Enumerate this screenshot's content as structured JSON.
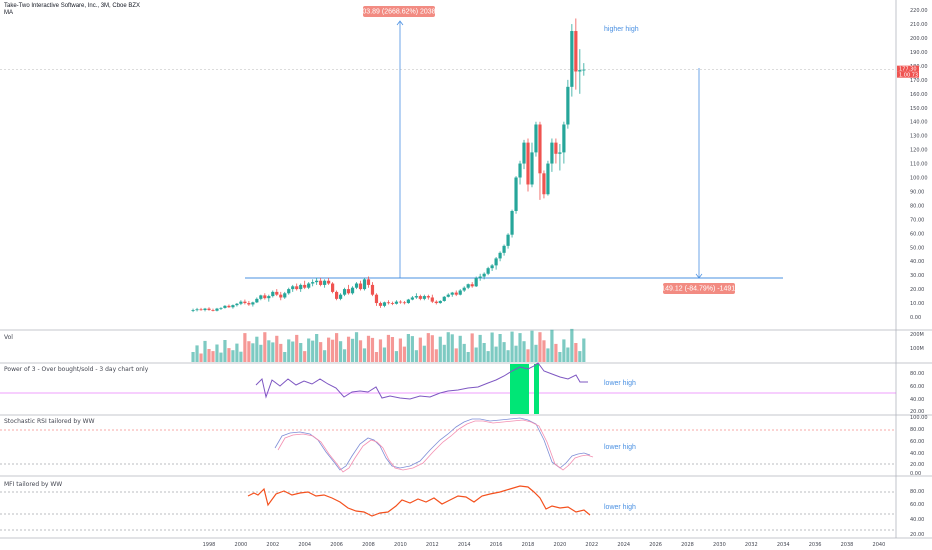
{
  "header": {
    "title": "Take-Two Interactive Software, Inc., 3M, Cboe BZX",
    "ma_label": "MA"
  },
  "colors": {
    "up": "#26a69a",
    "down": "#ef5350",
    "annotation_blue": "#4a90e2",
    "rsi_line": "#7e57c2",
    "mfi_line": "#f4511e",
    "green_fill": "#00e676"
  },
  "panels": {
    "volume": {
      "title": "Vol",
      "ticks": [
        "200M",
        "100M"
      ]
    },
    "power3": {
      "title": "Power of 3 - Over bought/sold - 3 day chart only",
      "ticks": [
        "80.00",
        "60.00",
        "40.00",
        "20.00"
      ],
      "annotation": "lower high"
    },
    "stochrsi": {
      "title": "Stochastic RSI tailored by WW",
      "ticks": [
        "100.00",
        "80.00",
        "60.00",
        "40.00",
        "20.00",
        "0.00"
      ],
      "annotation": "lower high"
    },
    "mfi": {
      "title": "MFI tailored by WW",
      "ticks": [
        "80.00",
        "60.00",
        "40.00",
        "20.00"
      ],
      "annotation": "lower high"
    }
  },
  "main_annotations": {
    "higher_high": "higher high",
    "measure_up": "203.89 (2668.62%) 20389",
    "measure_down": "-149.12 (-84.79%) -14912",
    "price_labels": [
      "177.30",
      "1.00 73"
    ]
  },
  "chart_data": {
    "type": "candlestick",
    "price_ticks": [
      "220.00",
      "210.00",
      "200.00",
      "190.00",
      "180.00",
      "170.00",
      "160.00",
      "150.00",
      "140.00",
      "130.00",
      "120.00",
      "110.00",
      "100.00",
      "90.00",
      "80.00",
      "70.00",
      "60.00",
      "50.00",
      "40.00",
      "30.00",
      "20.00",
      "10.00",
      "0.00"
    ],
    "years": [
      "1998",
      "2000",
      "2002",
      "2004",
      "2006",
      "2008",
      "2010",
      "2012",
      "2014",
      "2016",
      "2018",
      "2020",
      "2022",
      "2024",
      "2026",
      "2028",
      "2030",
      "2032",
      "2034",
      "2036",
      "2038",
      "2040"
    ],
    "support_level": 28,
    "candles": [
      {
        "t": 1997.0,
        "o": 4.5,
        "h": 6.0,
        "l": 3.5,
        "c": 5.0
      },
      {
        "t": 1997.25,
        "o": 5.0,
        "h": 6.5,
        "l": 4.0,
        "c": 5.5
      },
      {
        "t": 1997.5,
        "o": 5.5,
        "h": 6.5,
        "l": 4.5,
        "c": 5.0
      },
      {
        "t": 1997.75,
        "o": 5.0,
        "h": 6.5,
        "l": 4.0,
        "c": 6.0
      },
      {
        "t": 1998.0,
        "o": 6.0,
        "h": 7.0,
        "l": 4.5,
        "c": 5.0
      },
      {
        "t": 1998.25,
        "o": 5.0,
        "h": 6.0,
        "l": 4.0,
        "c": 4.5
      },
      {
        "t": 1998.5,
        "o": 4.5,
        "h": 6.5,
        "l": 4.0,
        "c": 6.0
      },
      {
        "t": 1998.75,
        "o": 6.0,
        "h": 7.0,
        "l": 5.0,
        "c": 6.5
      },
      {
        "t": 1999.0,
        "o": 6.5,
        "h": 8.5,
        "l": 6.0,
        "c": 8.0
      },
      {
        "t": 1999.25,
        "o": 8.0,
        "h": 9.0,
        "l": 6.5,
        "c": 7.0
      },
      {
        "t": 1999.5,
        "o": 7.0,
        "h": 9.0,
        "l": 6.0,
        "c": 8.5
      },
      {
        "t": 1999.75,
        "o": 8.5,
        "h": 10.0,
        "l": 7.5,
        "c": 9.5
      },
      {
        "t": 2000.0,
        "o": 9.5,
        "h": 12.0,
        "l": 8.5,
        "c": 11.0
      },
      {
        "t": 2000.25,
        "o": 11.0,
        "h": 12.5,
        "l": 9.0,
        "c": 10.0
      },
      {
        "t": 2000.5,
        "o": 10.0,
        "h": 11.5,
        "l": 8.0,
        "c": 9.0
      },
      {
        "t": 2000.75,
        "o": 9.0,
        "h": 11.0,
        "l": 7.5,
        "c": 10.5
      },
      {
        "t": 2001.0,
        "o": 10.5,
        "h": 14.0,
        "l": 10.0,
        "c": 13.0
      },
      {
        "t": 2001.25,
        "o": 13.0,
        "h": 16.0,
        "l": 12.0,
        "c": 15.5
      },
      {
        "t": 2001.5,
        "o": 15.5,
        "h": 17.0,
        "l": 12.5,
        "c": 13.5
      },
      {
        "t": 2001.75,
        "o": 13.5,
        "h": 16.0,
        "l": 11.0,
        "c": 15.0
      },
      {
        "t": 2002.0,
        "o": 15.0,
        "h": 19.0,
        "l": 14.0,
        "c": 18.0
      },
      {
        "t": 2002.25,
        "o": 18.0,
        "h": 20.0,
        "l": 15.0,
        "c": 16.0
      },
      {
        "t": 2002.5,
        "o": 16.0,
        "h": 18.0,
        "l": 12.0,
        "c": 14.0
      },
      {
        "t": 2002.75,
        "o": 14.0,
        "h": 18.0,
        "l": 13.0,
        "c": 17.0
      },
      {
        "t": 2003.0,
        "o": 17.0,
        "h": 21.0,
        "l": 16.0,
        "c": 20.0
      },
      {
        "t": 2003.25,
        "o": 20.0,
        "h": 23.0,
        "l": 18.0,
        "c": 22.0
      },
      {
        "t": 2003.5,
        "o": 22.0,
        "h": 24.0,
        "l": 19.0,
        "c": 20.0
      },
      {
        "t": 2003.75,
        "o": 20.0,
        "h": 24.0,
        "l": 18.0,
        "c": 23.0
      },
      {
        "t": 2004.0,
        "o": 23.0,
        "h": 26.0,
        "l": 20.0,
        "c": 21.0
      },
      {
        "t": 2004.25,
        "o": 21.0,
        "h": 25.0,
        "l": 20.0,
        "c": 24.0
      },
      {
        "t": 2004.5,
        "o": 24.0,
        "h": 27.0,
        "l": 22.0,
        "c": 25.0
      },
      {
        "t": 2004.75,
        "o": 25.0,
        "h": 28.0,
        "l": 23.0,
        "c": 26.0
      },
      {
        "t": 2005.0,
        "o": 26.0,
        "h": 28.0,
        "l": 22.0,
        "c": 23.0
      },
      {
        "t": 2005.25,
        "o": 23.0,
        "h": 27.0,
        "l": 21.0,
        "c": 26.0
      },
      {
        "t": 2005.5,
        "o": 26.0,
        "h": 28.0,
        "l": 23.0,
        "c": 24.0
      },
      {
        "t": 2005.75,
        "o": 24.0,
        "h": 25.0,
        "l": 17.0,
        "c": 18.0
      },
      {
        "t": 2006.0,
        "o": 18.0,
        "h": 19.0,
        "l": 12.0,
        "c": 13.0
      },
      {
        "t": 2006.25,
        "o": 13.0,
        "h": 17.0,
        "l": 12.0,
        "c": 16.0
      },
      {
        "t": 2006.5,
        "o": 16.0,
        "h": 21.0,
        "l": 15.0,
        "c": 20.0
      },
      {
        "t": 2006.75,
        "o": 20.0,
        "h": 23.0,
        "l": 16.0,
        "c": 17.0
      },
      {
        "t": 2007.0,
        "o": 17.0,
        "h": 22.0,
        "l": 16.0,
        "c": 21.0
      },
      {
        "t": 2007.25,
        "o": 21.0,
        "h": 25.0,
        "l": 20.0,
        "c": 24.0
      },
      {
        "t": 2007.5,
        "o": 24.0,
        "h": 26.0,
        "l": 19.0,
        "c": 20.0
      },
      {
        "t": 2007.75,
        "o": 20.0,
        "h": 28.0,
        "l": 19.0,
        "c": 27.0
      },
      {
        "t": 2008.0,
        "o": 27.0,
        "h": 29.0,
        "l": 21.0,
        "c": 23.0
      },
      {
        "t": 2008.25,
        "o": 23.0,
        "h": 25.0,
        "l": 15.0,
        "c": 16.0
      },
      {
        "t": 2008.5,
        "o": 16.0,
        "h": 17.0,
        "l": 8.0,
        "c": 10.0
      },
      {
        "t": 2008.75,
        "o": 10.0,
        "h": 11.0,
        "l": 6.5,
        "c": 8.0
      },
      {
        "t": 2009.0,
        "o": 8.0,
        "h": 11.0,
        "l": 7.0,
        "c": 10.5
      },
      {
        "t": 2009.25,
        "o": 10.5,
        "h": 12.0,
        "l": 9.0,
        "c": 10.0
      },
      {
        "t": 2009.5,
        "o": 10.0,
        "h": 11.0,
        "l": 8.5,
        "c": 9.5
      },
      {
        "t": 2009.75,
        "o": 9.5,
        "h": 12.0,
        "l": 9.0,
        "c": 11.0
      },
      {
        "t": 2010.0,
        "o": 11.0,
        "h": 12.0,
        "l": 9.5,
        "c": 10.5
      },
      {
        "t": 2010.25,
        "o": 10.5,
        "h": 11.5,
        "l": 9.0,
        "c": 10.0
      },
      {
        "t": 2010.5,
        "o": 10.0,
        "h": 13.0,
        "l": 9.5,
        "c": 12.5
      },
      {
        "t": 2010.75,
        "o": 12.5,
        "h": 15.0,
        "l": 12.0,
        "c": 14.0
      },
      {
        "t": 2011.0,
        "o": 14.0,
        "h": 17.0,
        "l": 13.0,
        "c": 15.0
      },
      {
        "t": 2011.25,
        "o": 15.0,
        "h": 16.0,
        "l": 12.0,
        "c": 13.0
      },
      {
        "t": 2011.5,
        "o": 13.0,
        "h": 16.0,
        "l": 12.0,
        "c": 15.0
      },
      {
        "t": 2011.75,
        "o": 15.0,
        "h": 16.0,
        "l": 12.5,
        "c": 14.0
      },
      {
        "t": 2012.0,
        "o": 14.0,
        "h": 16.0,
        "l": 10.0,
        "c": 11.0
      },
      {
        "t": 2012.25,
        "o": 11.0,
        "h": 12.0,
        "l": 9.0,
        "c": 10.0
      },
      {
        "t": 2012.5,
        "o": 10.0,
        "h": 12.0,
        "l": 9.5,
        "c": 11.5
      },
      {
        "t": 2012.75,
        "o": 11.5,
        "h": 15.0,
        "l": 11.0,
        "c": 14.5
      },
      {
        "t": 2013.0,
        "o": 14.5,
        "h": 17.0,
        "l": 14.0,
        "c": 16.0
      },
      {
        "t": 2013.25,
        "o": 16.0,
        "h": 18.0,
        "l": 14.5,
        "c": 17.5
      },
      {
        "t": 2013.5,
        "o": 17.5,
        "h": 19.0,
        "l": 15.0,
        "c": 16.0
      },
      {
        "t": 2013.75,
        "o": 16.0,
        "h": 20.0,
        "l": 15.5,
        "c": 19.0
      },
      {
        "t": 2014.0,
        "o": 19.0,
        "h": 22.0,
        "l": 18.0,
        "c": 21.0
      },
      {
        "t": 2014.25,
        "o": 21.0,
        "h": 24.0,
        "l": 20.0,
        "c": 23.5
      },
      {
        "t": 2014.5,
        "o": 23.5,
        "h": 25.0,
        "l": 21.0,
        "c": 22.0
      },
      {
        "t": 2014.75,
        "o": 22.0,
        "h": 29.0,
        "l": 21.5,
        "c": 28.0
      },
      {
        "t": 2015.0,
        "o": 28.0,
        "h": 31.0,
        "l": 26.0,
        "c": 29.0
      },
      {
        "t": 2015.25,
        "o": 29.0,
        "h": 32.0,
        "l": 27.0,
        "c": 31.0
      },
      {
        "t": 2015.5,
        "o": 31.0,
        "h": 36.0,
        "l": 30.0,
        "c": 35.0
      },
      {
        "t": 2015.75,
        "o": 35.0,
        "h": 38.0,
        "l": 33.0,
        "c": 37.0
      },
      {
        "t": 2016.0,
        "o": 37.0,
        "h": 43.0,
        "l": 34.0,
        "c": 42.0
      },
      {
        "t": 2016.25,
        "o": 42.0,
        "h": 47.0,
        "l": 40.0,
        "c": 46.0
      },
      {
        "t": 2016.5,
        "o": 46.0,
        "h": 52.0,
        "l": 44.0,
        "c": 51.0
      },
      {
        "t": 2016.75,
        "o": 51.0,
        "h": 60.0,
        "l": 49.0,
        "c": 59.0
      },
      {
        "t": 2017.0,
        "o": 59.0,
        "h": 77.0,
        "l": 57.0,
        "c": 76.0
      },
      {
        "t": 2017.25,
        "o": 76.0,
        "h": 101.0,
        "l": 74.0,
        "c": 100.0
      },
      {
        "t": 2017.5,
        "o": 100.0,
        "h": 112.0,
        "l": 95.0,
        "c": 110.0
      },
      {
        "t": 2017.75,
        "o": 110.0,
        "h": 127.0,
        "l": 106.0,
        "c": 125.0
      },
      {
        "t": 2018.0,
        "o": 125.0,
        "h": 128.0,
        "l": 90.0,
        "c": 95.0
      },
      {
        "t": 2018.25,
        "o": 95.0,
        "h": 125.0,
        "l": 93.0,
        "c": 118.0
      },
      {
        "t": 2018.5,
        "o": 118.0,
        "h": 140.0,
        "l": 115.0,
        "c": 138.0
      },
      {
        "t": 2018.75,
        "o": 138.0,
        "h": 140.0,
        "l": 84.0,
        "c": 103.0
      },
      {
        "t": 2019.0,
        "o": 103.0,
        "h": 105.0,
        "l": 85.0,
        "c": 88.0
      },
      {
        "t": 2019.25,
        "o": 88.0,
        "h": 112.0,
        "l": 87.0,
        "c": 110.0
      },
      {
        "t": 2019.5,
        "o": 110.0,
        "h": 128.0,
        "l": 104.0,
        "c": 125.0
      },
      {
        "t": 2019.75,
        "o": 125.0,
        "h": 128.0,
        "l": 110.0,
        "c": 117.0
      },
      {
        "t": 2020.0,
        "o": 117.0,
        "h": 124.0,
        "l": 105.0,
        "c": 118.0
      },
      {
        "t": 2020.25,
        "o": 118.0,
        "h": 140.0,
        "l": 110.0,
        "c": 138.0
      },
      {
        "t": 2020.5,
        "o": 138.0,
        "h": 170.0,
        "l": 135.0,
        "c": 165.0
      },
      {
        "t": 2020.75,
        "o": 165.0,
        "h": 210.0,
        "l": 158.0,
        "c": 205.0
      },
      {
        "t": 2021.0,
        "o": 205.0,
        "h": 214.0,
        "l": 163.0,
        "c": 176.0
      },
      {
        "t": 2021.25,
        "o": 176.0,
        "h": 192.0,
        "l": 160.0,
        "c": 177.0
      },
      {
        "t": 2021.5,
        "o": 177.0,
        "h": 182.0,
        "l": 173.0,
        "c": 177.3
      }
    ]
  }
}
